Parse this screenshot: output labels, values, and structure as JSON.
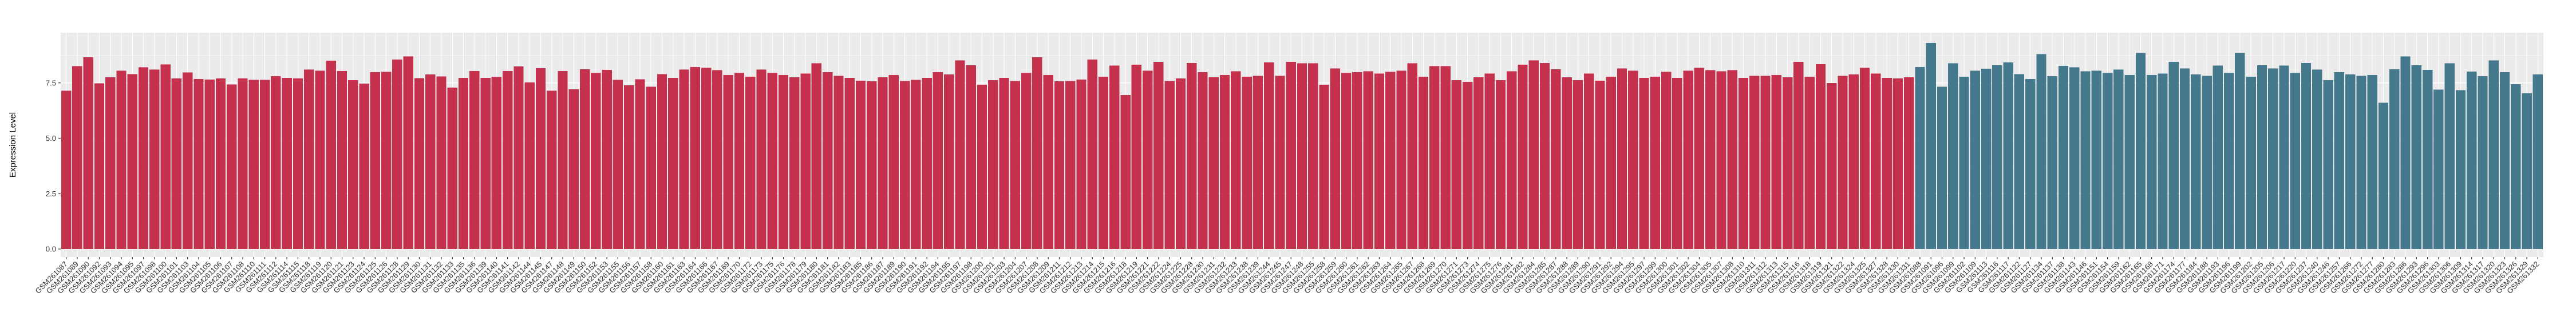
{
  "chart_data": {
    "type": "bar",
    "title": "",
    "xlabel": "",
    "ylabel": "Expression Level",
    "ylim": [
      0,
      9.77
    ],
    "yticks": [
      0.0,
      2.5,
      5.0,
      7.5
    ],
    "ytick_labels": [
      "0.0",
      "2.5",
      "5.0",
      "7.5"
    ],
    "grid": true,
    "legend_position": "none",
    "panel_background": "#EBEBEB",
    "gridline_color": "#FFFFFF",
    "axis_text_color": "#303030",
    "x_label_rotation_deg": 45,
    "series": [
      {
        "name": "series-1",
        "color": "#C3314D",
        "categories": [
          "GSM261087",
          "GSM261089",
          "GSM261090",
          "GSM261092",
          "GSM261093",
          "GSM261094",
          "GSM261095",
          "GSM261097",
          "GSM261098",
          "GSM261100",
          "GSM261101",
          "GSM261103",
          "GSM261104",
          "GSM261105",
          "GSM261106",
          "GSM261107",
          "GSM261108",
          "GSM261110",
          "GSM261111",
          "GSM261112",
          "GSM261114",
          "GSM261115",
          "GSM261118",
          "GSM261119",
          "GSM261120",
          "GSM261121",
          "GSM261123",
          "GSM261124",
          "GSM261125",
          "GSM261126",
          "GSM261128",
          "GSM261129",
          "GSM261130",
          "GSM261131",
          "GSM261132",
          "GSM261133",
          "GSM261135",
          "GSM261136",
          "GSM261139",
          "GSM261140",
          "GSM261141",
          "GSM261142",
          "GSM261144",
          "GSM261145",
          "GSM261147",
          "GSM261148",
          "GSM261149",
          "GSM261150",
          "GSM261152",
          "GSM261153",
          "GSM261155",
          "GSM261156",
          "GSM261157",
          "GSM261158",
          "GSM261160",
          "GSM261161",
          "GSM261163",
          "GSM261164",
          "GSM261166",
          "GSM261167",
          "GSM261169",
          "GSM261170",
          "GSM261172",
          "GSM261173",
          "GSM261175",
          "GSM261176",
          "GSM261178",
          "GSM261179",
          "GSM261180",
          "GSM261181",
          "GSM261182",
          "GSM261183",
          "GSM261185",
          "GSM261186",
          "GSM261187",
          "GSM261189",
          "GSM261190",
          "GSM261191",
          "GSM261192",
          "GSM261194",
          "GSM261195",
          "GSM261197",
          "GSM261198",
          "GSM261200",
          "GSM261201",
          "GSM261203",
          "GSM261204",
          "GSM261207",
          "GSM261208",
          "GSM261209",
          "GSM261211",
          "GSM261212",
          "GSM261213",
          "GSM261214",
          "GSM261215",
          "GSM261216",
          "GSM261218",
          "GSM261219",
          "GSM261221",
          "GSM261222",
          "GSM261224",
          "GSM261225",
          "GSM261228",
          "GSM261230",
          "GSM261231",
          "GSM261232",
          "GSM261233",
          "GSM261238",
          "GSM261239",
          "GSM261244",
          "GSM261245",
          "GSM261247",
          "GSM261248",
          "GSM261255",
          "GSM261258",
          "GSM261259",
          "GSM261260",
          "GSM261261",
          "GSM261262",
          "GSM261263",
          "GSM261264",
          "GSM261265",
          "GSM261267",
          "GSM261268",
          "GSM261269",
          "GSM261270",
          "GSM261271",
          "GSM261273",
          "GSM261274",
          "GSM261275",
          "GSM261276",
          "GSM261281",
          "GSM261282",
          "GSM261284",
          "GSM261285",
          "GSM261287",
          "GSM261288",
          "GSM261289",
          "GSM261290",
          "GSM261291",
          "GSM261292",
          "GSM261294",
          "GSM261295",
          "GSM261297",
          "GSM261299",
          "GSM261300",
          "GSM261301",
          "GSM261302",
          "GSM261304",
          "GSM261305",
          "GSM261307",
          "GSM261308",
          "GSM261310",
          "GSM261311",
          "GSM261312",
          "GSM261313",
          "GSM261315",
          "GSM261316",
          "GSM261318",
          "GSM261319",
          "GSM261321",
          "GSM261322",
          "GSM261324",
          "GSM261325",
          "GSM261327",
          "GSM261328",
          "GSM261330",
          "GSM261331"
        ],
        "values": [
          7.15,
          8.25,
          8.65,
          7.48,
          7.75,
          8.05,
          7.9,
          8.2,
          8.1,
          8.33,
          7.7,
          7.97,
          7.68,
          7.65,
          7.7,
          7.43,
          7.7,
          7.63,
          7.63,
          7.8,
          7.72,
          7.7,
          8.1,
          8.05,
          8.5,
          8.03,
          7.62,
          7.47,
          7.98,
          8.0,
          8.55,
          8.7,
          7.71,
          7.88,
          7.79,
          7.29,
          7.72,
          8.03,
          7.73,
          7.76,
          8.04,
          8.24,
          7.52,
          8.17,
          7.15,
          8.03,
          7.21,
          8.12,
          7.95,
          8.09,
          7.63,
          7.39,
          7.66,
          7.33,
          7.9,
          7.73,
          8.1,
          8.22,
          8.18,
          8.08,
          7.85,
          7.95,
          7.78,
          8.1,
          7.95,
          7.85,
          7.75,
          7.92,
          8.38,
          7.98,
          7.82,
          7.72,
          7.6,
          7.57,
          7.75,
          7.85,
          7.58,
          7.63,
          7.73,
          7.98,
          7.88,
          8.52,
          8.3,
          7.42,
          7.62,
          7.72,
          7.58,
          7.95,
          8.65,
          7.85,
          7.57,
          7.58,
          7.65,
          8.55,
          7.78,
          8.28,
          6.95,
          8.32,
          8.05,
          8.45,
          7.58,
          7.7,
          8.4,
          7.98,
          7.75,
          7.85,
          8.02,
          7.78,
          7.82,
          8.42,
          7.82,
          8.45,
          8.38,
          8.38,
          7.42,
          8.15,
          7.95,
          7.98,
          8.02,
          7.92,
          8.0,
          8.05,
          8.38,
          7.78,
          8.25,
          8.25,
          7.62,
          7.55,
          7.75,
          7.92,
          7.62,
          8.02,
          8.32,
          8.52,
          8.4,
          8.12,
          7.75,
          7.62,
          7.92,
          7.6,
          7.78,
          8.15,
          8.05,
          7.72,
          7.78,
          8.0,
          7.72,
          8.05,
          8.18,
          8.08,
          8.02,
          8.08,
          7.72,
          7.82,
          7.82,
          7.85,
          7.75,
          8.45,
          7.78,
          8.35,
          7.5,
          7.82,
          7.88,
          8.18,
          7.92,
          7.72,
          7.7,
          7.75
        ]
      },
      {
        "name": "series-2",
        "color": "#44798D",
        "categories": [
          "GSM261088",
          "GSM261091",
          "GSM261096",
          "GSM261099",
          "GSM261102",
          "GSM261109",
          "GSM261113",
          "GSM261116",
          "GSM261117",
          "GSM261122",
          "GSM261127",
          "GSM261134",
          "GSM261137",
          "GSM261138",
          "GSM261143",
          "GSM261146",
          "GSM261151",
          "GSM261154",
          "GSM261159",
          "GSM261162",
          "GSM261165",
          "GSM261168",
          "GSM261171",
          "GSM261174",
          "GSM261177",
          "GSM261184",
          "GSM261188",
          "GSM261193",
          "GSM261196",
          "GSM261199",
          "GSM261202",
          "GSM261205",
          "GSM261206",
          "GSM261217",
          "GSM261220",
          "GSM261237",
          "GSM261240",
          "GSM261246",
          "GSM261257",
          "GSM261266",
          "GSM261272",
          "GSM261277",
          "GSM261280",
          "GSM261283",
          "GSM261286",
          "GSM261293",
          "GSM261296",
          "GSM261303",
          "GSM261306",
          "GSM261309",
          "GSM261314",
          "GSM261317",
          "GSM261320",
          "GSM261323",
          "GSM261326",
          "GSM261329",
          "GSM261332"
        ],
        "values": [
          8.22,
          9.3,
          7.33,
          8.38,
          7.78,
          8.05,
          8.14,
          8.3,
          8.42,
          7.9,
          7.68,
          8.8,
          7.81,
          8.27,
          8.2,
          8.02,
          8.05,
          7.95,
          8.1,
          7.85,
          8.85,
          7.85,
          7.92,
          8.45,
          8.15,
          7.88,
          7.82,
          8.28,
          7.95,
          8.85,
          7.78,
          8.3,
          8.15,
          8.28,
          7.95,
          8.4,
          8.1,
          7.62,
          7.98,
          7.88,
          7.82,
          7.85,
          6.6,
          8.11,
          8.7,
          8.3,
          8.09,
          7.19,
          8.39,
          7.17,
          8.01,
          7.8,
          8.51,
          7.98,
          7.44,
          7.03,
          7.88
        ]
      }
    ]
  }
}
